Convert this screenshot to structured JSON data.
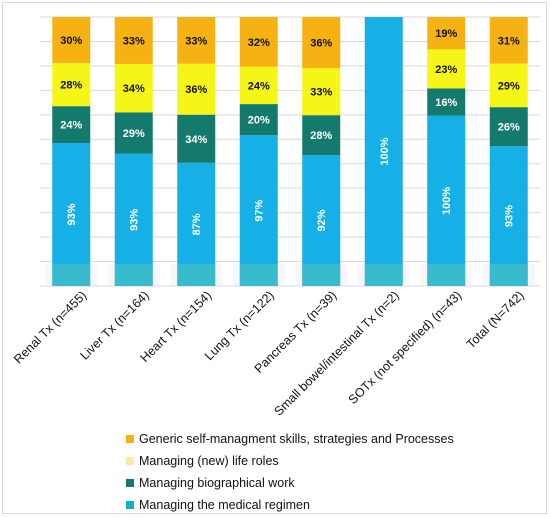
{
  "chart_data": {
    "type": "bar",
    "stacked": true,
    "percent_stacked": true,
    "grid": true,
    "legend_position": "bottom",
    "categories": [
      "Renal Tx (n=455)",
      "Liver Tx (n=164)",
      "Heart Tx (n=154)",
      "Lung Tx (n=122)",
      "Pancreas Tx (n=39)",
      "Small bowel/intestinal Tx (n=2)",
      "SOTx (not specified) (n=43)",
      "Total (N=742)"
    ],
    "series": [
      {
        "name": "Managing the medical regimen",
        "color": "#17b0e6",
        "values": [
          93,
          93,
          87,
          97,
          92,
          100,
          100,
          93
        ],
        "labels": [
          "93%",
          "93%",
          "87%",
          "97%",
          "92%",
          "100%",
          "100%",
          "93%"
        ]
      },
      {
        "name": "Managing biographical work",
        "color": "#157a6e",
        "values": [
          24,
          29,
          34,
          20,
          28,
          0,
          16,
          26
        ],
        "labels": [
          "24%",
          "29%",
          "34%",
          "20%",
          "28%",
          "",
          "16%",
          "26%"
        ]
      },
      {
        "name": "Managing (new) life roles",
        "color": "#f5f517",
        "values": [
          28,
          34,
          36,
          24,
          33,
          0,
          23,
          29
        ],
        "labels": [
          "28%",
          "34%",
          "36%",
          "24%",
          "33%",
          "",
          "23%",
          "29%"
        ]
      },
      {
        "name": "Generic self-managment skills, strategies and Processes",
        "color": "#f5b212",
        "values": [
          30,
          33,
          33,
          32,
          36,
          0,
          19,
          31
        ],
        "labels": [
          "30%",
          "33%",
          "33%",
          "32%",
          "36%",
          "",
          "19%",
          "31%"
        ]
      }
    ]
  },
  "legend": {
    "items": [
      {
        "label": "Generic self-managment skills, strategies and Processes",
        "color": "#f5b212"
      },
      {
        "label": "Managing (new) life roles",
        "color": "#fbe8a8"
      },
      {
        "label": "Managing biographical work",
        "color": "#157a6e"
      },
      {
        "label": "Managing the medical regimen",
        "color": "#17b0c8"
      }
    ]
  }
}
